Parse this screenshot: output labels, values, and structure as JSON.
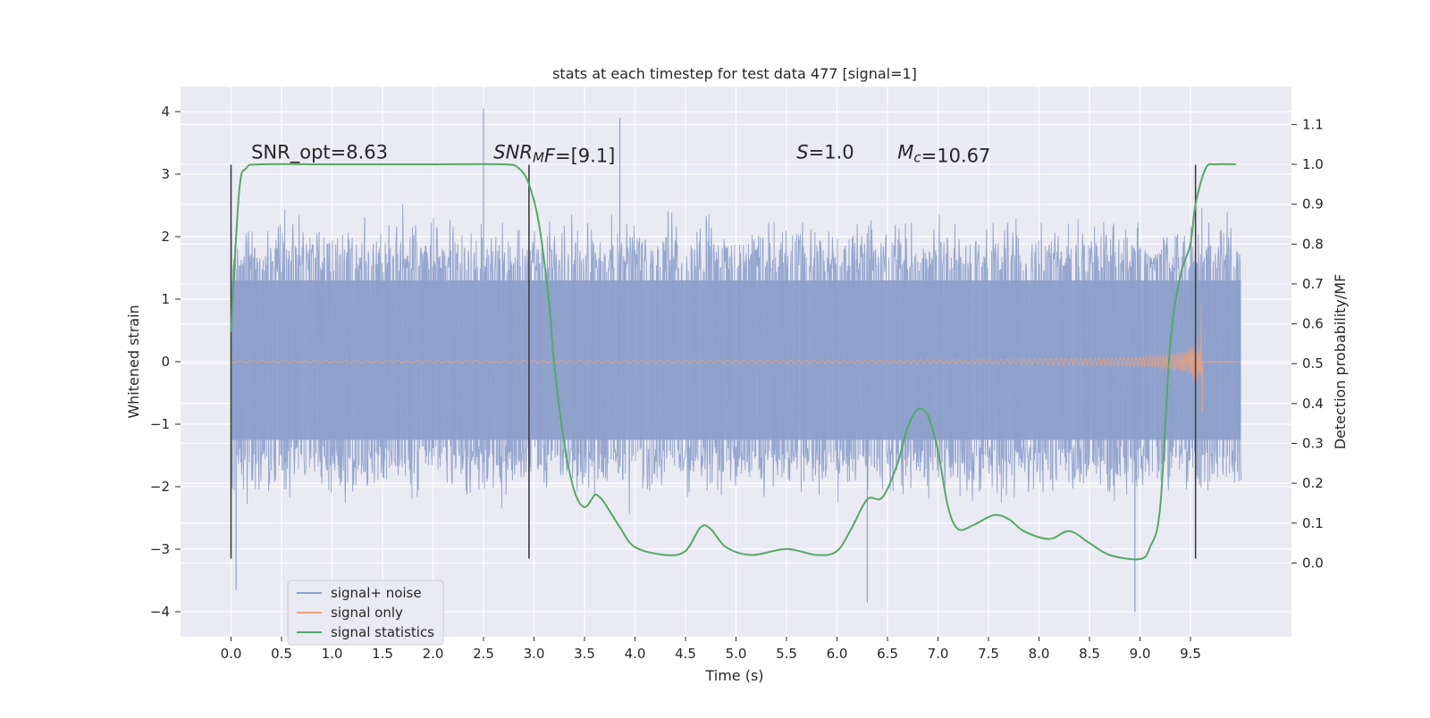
{
  "chart_data": {
    "type": "line",
    "title": "stats at each timestep for test data 477 [signal=1]",
    "xlabel": "Time (s)",
    "ylabel_left": "Whitened strain",
    "ylabel_right": "Detection probability/MF",
    "xlim": [
      -0.5,
      10.5
    ],
    "ylim_left": [
      -4.4,
      4.4
    ],
    "ylim_right": [
      -0.185,
      1.195
    ],
    "xticks": [
      0.0,
      0.5,
      1.0,
      1.5,
      2.0,
      2.5,
      3.0,
      3.5,
      4.0,
      4.5,
      5.0,
      5.5,
      6.0,
      6.5,
      7.0,
      7.5,
      8.0,
      8.5,
      9.0,
      9.5
    ],
    "yticks_left": [
      4,
      3,
      2,
      1,
      0,
      -1,
      -2,
      -3,
      -4
    ],
    "yticks_left_labels": [
      "4",
      "3",
      "2",
      "1",
      "0",
      "−1",
      "−2",
      "−3",
      "−4"
    ],
    "yticks_right": [
      1.1,
      1.0,
      0.9,
      0.8,
      0.7,
      0.6,
      0.5,
      0.4,
      0.3,
      0.2,
      0.1,
      0.0
    ],
    "yticks_right_labels": [
      "1.1",
      "1.0",
      "0.9",
      "0.8",
      "0.7",
      "0.6",
      "0.5",
      "0.4",
      "0.3",
      "0.2",
      "0.1",
      "0.0"
    ],
    "grid": true,
    "legend_position": "lower-left",
    "series": [
      {
        "name": "signal+ noise",
        "axis": "left",
        "color": "#8da0cb",
        "style": "noise",
        "x_range": [
          0.0,
          10.0
        ],
        "envelope_typical": [
          -1.8,
          1.9
        ],
        "max": 4.05,
        "min": -4.0
      },
      {
        "name": "signal only",
        "axis": "left",
        "color": "#e8a07e",
        "style": "chirp",
        "x_range": [
          0.0,
          9.65
        ],
        "merger_time": 9.62,
        "peak_amplitude": [
          1.1,
          -1.5
        ]
      },
      {
        "name": "signal statistics",
        "axis": "right",
        "color": "#55a868",
        "points": [
          [
            0.0,
            0.58
          ],
          [
            0.08,
            0.93
          ],
          [
            0.15,
            0.99
          ],
          [
            0.3,
            1.0
          ],
          [
            1.0,
            1.0
          ],
          [
            2.0,
            1.0
          ],
          [
            2.7,
            1.0
          ],
          [
            2.85,
            0.99
          ],
          [
            2.95,
            0.95
          ],
          [
            3.05,
            0.85
          ],
          [
            3.15,
            0.65
          ],
          [
            3.2,
            0.5
          ],
          [
            3.3,
            0.3
          ],
          [
            3.4,
            0.18
          ],
          [
            3.5,
            0.14
          ],
          [
            3.6,
            0.17
          ],
          [
            3.65,
            0.165
          ],
          [
            3.7,
            0.15
          ],
          [
            3.85,
            0.09
          ],
          [
            4.0,
            0.04
          ],
          [
            4.3,
            0.02
          ],
          [
            4.5,
            0.03
          ],
          [
            4.65,
            0.09
          ],
          [
            4.75,
            0.085
          ],
          [
            4.9,
            0.04
          ],
          [
            5.15,
            0.02
          ],
          [
            5.5,
            0.035
          ],
          [
            5.8,
            0.02
          ],
          [
            6.0,
            0.03
          ],
          [
            6.15,
            0.09
          ],
          [
            6.3,
            0.16
          ],
          [
            6.45,
            0.165
          ],
          [
            6.6,
            0.25
          ],
          [
            6.7,
            0.34
          ],
          [
            6.8,
            0.385
          ],
          [
            6.9,
            0.37
          ],
          [
            7.0,
            0.28
          ],
          [
            7.1,
            0.14
          ],
          [
            7.2,
            0.085
          ],
          [
            7.35,
            0.095
          ],
          [
            7.55,
            0.12
          ],
          [
            7.7,
            0.11
          ],
          [
            7.85,
            0.08
          ],
          [
            8.1,
            0.06
          ],
          [
            8.3,
            0.08
          ],
          [
            8.5,
            0.05
          ],
          [
            8.7,
            0.02
          ],
          [
            9.0,
            0.01
          ],
          [
            9.1,
            0.04
          ],
          [
            9.2,
            0.14
          ],
          [
            9.3,
            0.55
          ],
          [
            9.4,
            0.72
          ],
          [
            9.5,
            0.8
          ],
          [
            9.55,
            0.9
          ],
          [
            9.65,
            0.99
          ],
          [
            9.75,
            1.0
          ],
          [
            9.95,
            1.0
          ]
        ]
      }
    ],
    "vlines": [
      0.0,
      2.95,
      9.55
    ],
    "vlines_ylim_left": [
      -3.15,
      3.15
    ],
    "annotations": [
      {
        "id": "snr-opt",
        "x": 0.2,
        "y": 3.25,
        "parts": [
          {
            "t": "SNR_opt=8.63"
          }
        ]
      },
      {
        "id": "snr-mf",
        "x": 2.6,
        "y": 3.25,
        "parts": [
          {
            "t": "SNR",
            "i": true
          },
          {
            "t": "M",
            "i": true,
            "sub": true
          },
          {
            "t": "F",
            "i": true
          },
          {
            "t": "=[9.1]"
          }
        ]
      },
      {
        "id": "s-val",
        "x": 5.6,
        "y": 3.25,
        "parts": [
          {
            "t": "S",
            "i": true
          },
          {
            "t": "=1.0"
          }
        ]
      },
      {
        "id": "mc-val",
        "x": 6.6,
        "y": 3.25,
        "parts": [
          {
            "t": "M",
            "i": true
          },
          {
            "t": "c",
            "i": true,
            "sub": true
          },
          {
            "t": "=10.67"
          }
        ]
      }
    ]
  }
}
